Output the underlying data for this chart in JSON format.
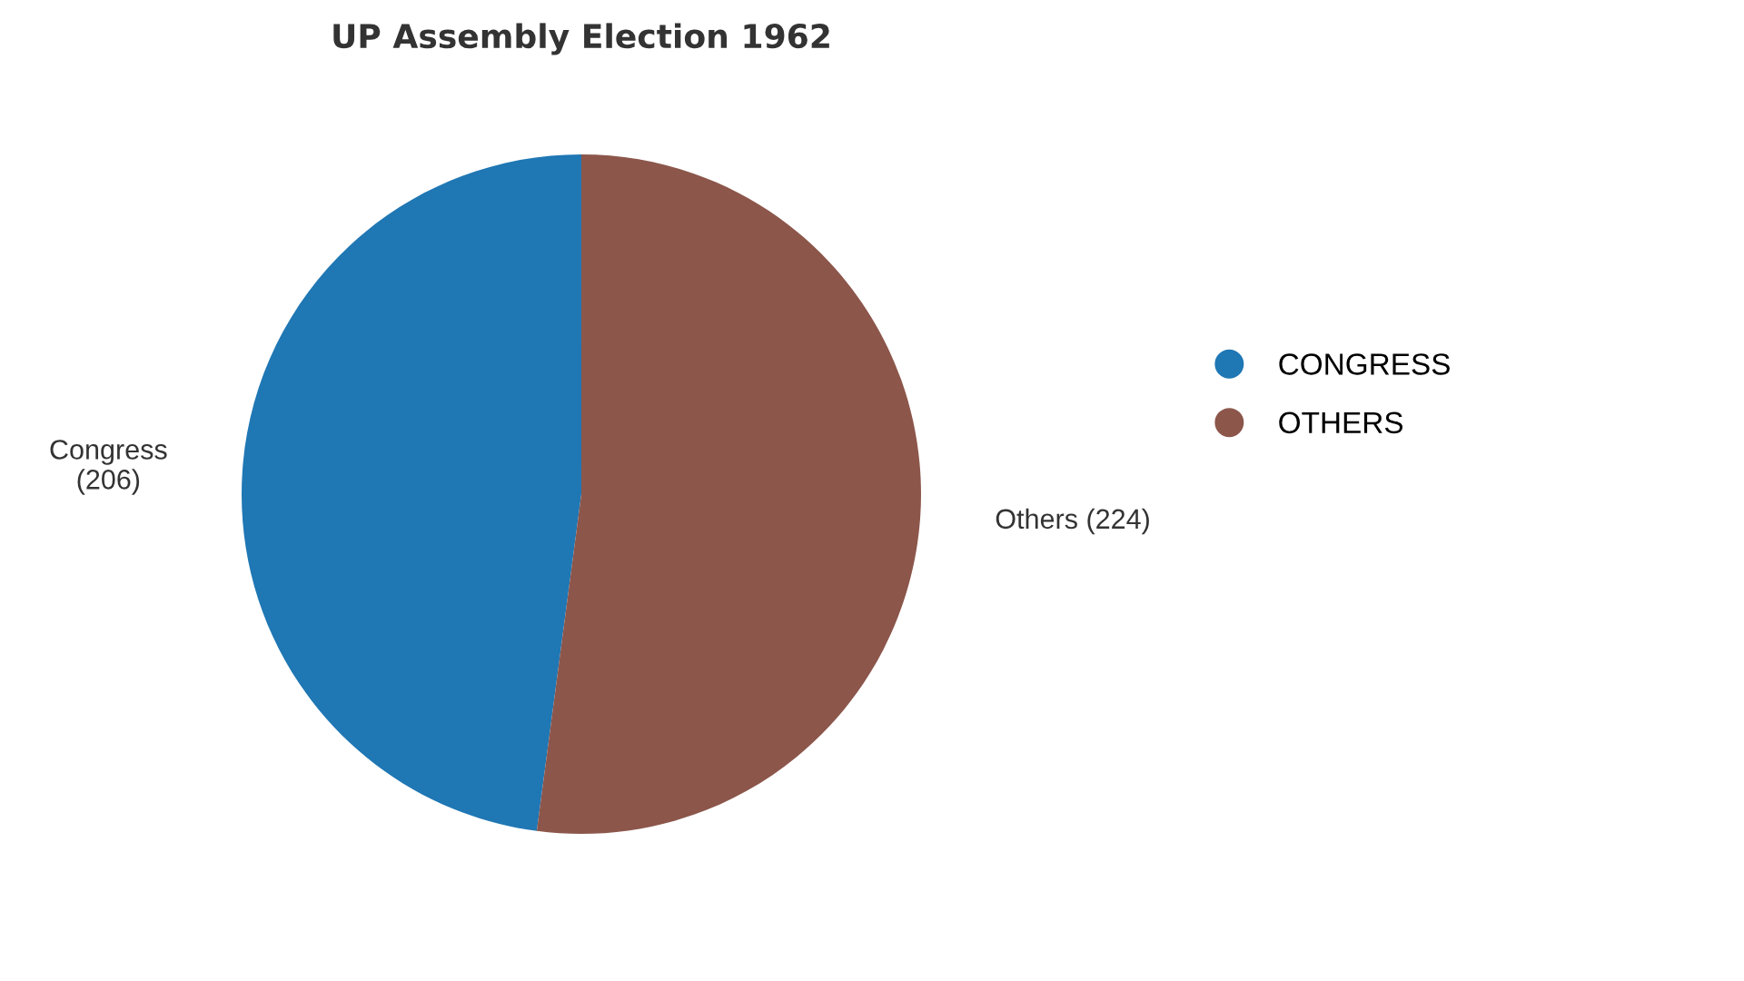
{
  "chart_data": {
    "type": "pie",
    "title": "UP Assembly Election 1962",
    "categories": [
      "CONGRESS",
      "OTHERS"
    ],
    "values": [
      206,
      224
    ],
    "colors": [
      "#1f77b4",
      "#8c564b"
    ],
    "value_labels": [
      "Congress\n(206)",
      "Others (224)"
    ],
    "legend": "right"
  }
}
